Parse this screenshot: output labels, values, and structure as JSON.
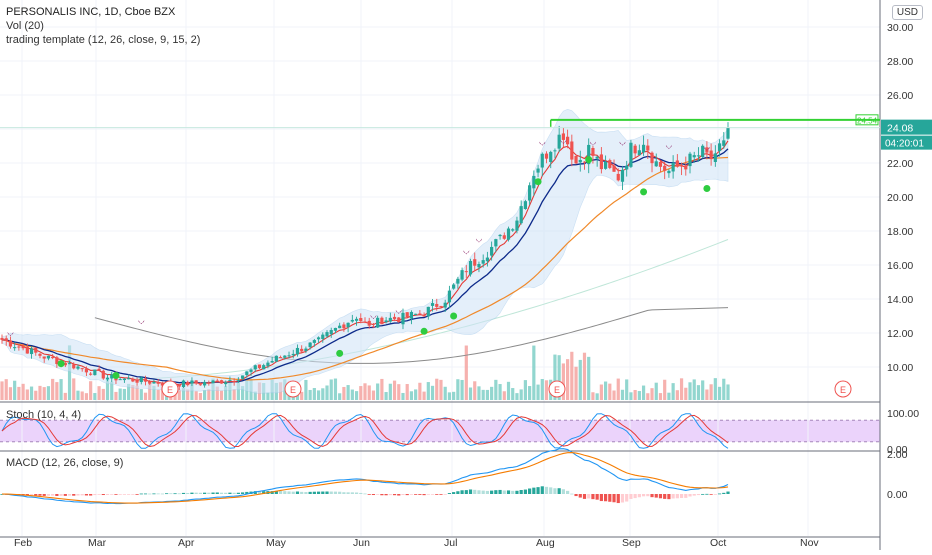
{
  "symbol_line": "PERSONALIS INC, 1D, Cboe BZX",
  "currency": "USD",
  "chart_data": [
    {
      "type": "candlestick",
      "pane": "price",
      "title": "PERSONALIS INC, 1D, Cboe BZX",
      "ylim": [
        8.6,
        31.0
      ],
      "y_ticks": [
        "30.00",
        "28.00",
        "26.00",
        "24.00",
        "22.00",
        "20.00",
        "18.00",
        "16.00",
        "14.00",
        "12.00",
        "10.00"
      ],
      "x_ticks": [
        "Feb",
        "Mar",
        "Apr",
        "May",
        "Jun",
        "Jul",
        "Aug",
        "Sep",
        "Oct",
        "Nov"
      ],
      "last_price": "24.08",
      "countdown": "04:20:01",
      "resistance_label": "24.54",
      "resistance_value": 24.54,
      "earnings_marker": "E",
      "colors": {
        "up": "#26a69a",
        "down": "#ef5350",
        "fast_ma": "#e53935",
        "slow_ma": "#0d2a8a",
        "ma50": "#f0892a",
        "ma_long": "#bfe6d8",
        "ma200": "#8a8a8a",
        "band": "#cfe3f6",
        "resistance": "#33d133",
        "signal_top": "#8e2a6a",
        "signal_bottom": "#2ecc40"
      }
    },
    {
      "type": "bar",
      "pane": "price",
      "title": "Vol (20)"
    },
    {
      "type": "line",
      "pane": "stoch",
      "title": "Stoch (10, 4, 4)",
      "ylim": [
        0,
        100
      ],
      "y_ticks": [
        "100.00",
        "0.00"
      ],
      "bands": [
        80,
        20
      ],
      "colors": {
        "k": "#2196f3",
        "d": "#e53935",
        "fill": "#e8cbfa"
      }
    },
    {
      "type": "line",
      "pane": "macd",
      "title": "MACD (12, 26, close, 9)",
      "ylim": [
        -1.45,
        2.0
      ],
      "y_ticks": [
        "2.00",
        "0.00"
      ],
      "colors": {
        "macd": "#2196f3",
        "signal": "#f57c00",
        "hist_pos_strong": "#26a69a",
        "hist_pos_weak": "#b2dfdb",
        "hist_neg_strong": "#ef5350",
        "hist_neg_weak": "#ffcdd2"
      }
    }
  ],
  "indicator_lines": {
    "template": "trading template (12, 26, close, 9, 15, 2)"
  }
}
